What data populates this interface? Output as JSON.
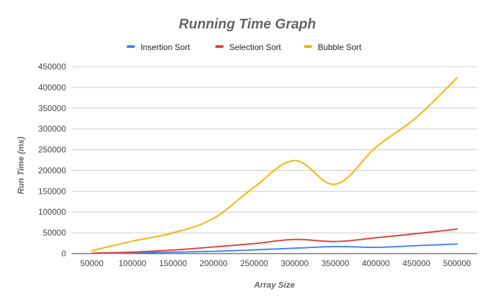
{
  "chart_data": {
    "type": "line",
    "title": "Running Time Graph",
    "xlabel": "Array Size",
    "ylabel": "Run Time (ms)",
    "categories": [
      "50000",
      "100000",
      "150000",
      "200000",
      "250000",
      "300000",
      "350000",
      "400000",
      "450000",
      "500000"
    ],
    "y_ticks": [
      "0",
      "50000",
      "100000",
      "150000",
      "200000",
      "250000",
      "300000",
      "350000",
      "400000",
      "450000"
    ],
    "ylim": [
      0,
      450000
    ],
    "grid": true,
    "legend_position": "top",
    "series": [
      {
        "name": "Insertion Sort",
        "color": "#4285f4",
        "values": [
          500,
          1500,
          3500,
          5500,
          9000,
          13000,
          17000,
          15000,
          19000,
          23000
        ]
      },
      {
        "name": "Selection Sort",
        "color": "#db4437",
        "values": [
          1000,
          3500,
          8500,
          16000,
          24000,
          34000,
          29000,
          38000,
          48000,
          59000
        ]
      },
      {
        "name": "Bubble Sort",
        "color": "#f4b400",
        "values": [
          7000,
          30000,
          50000,
          85000,
          160000,
          224000,
          167000,
          256000,
          328000,
          423000
        ]
      }
    ]
  }
}
